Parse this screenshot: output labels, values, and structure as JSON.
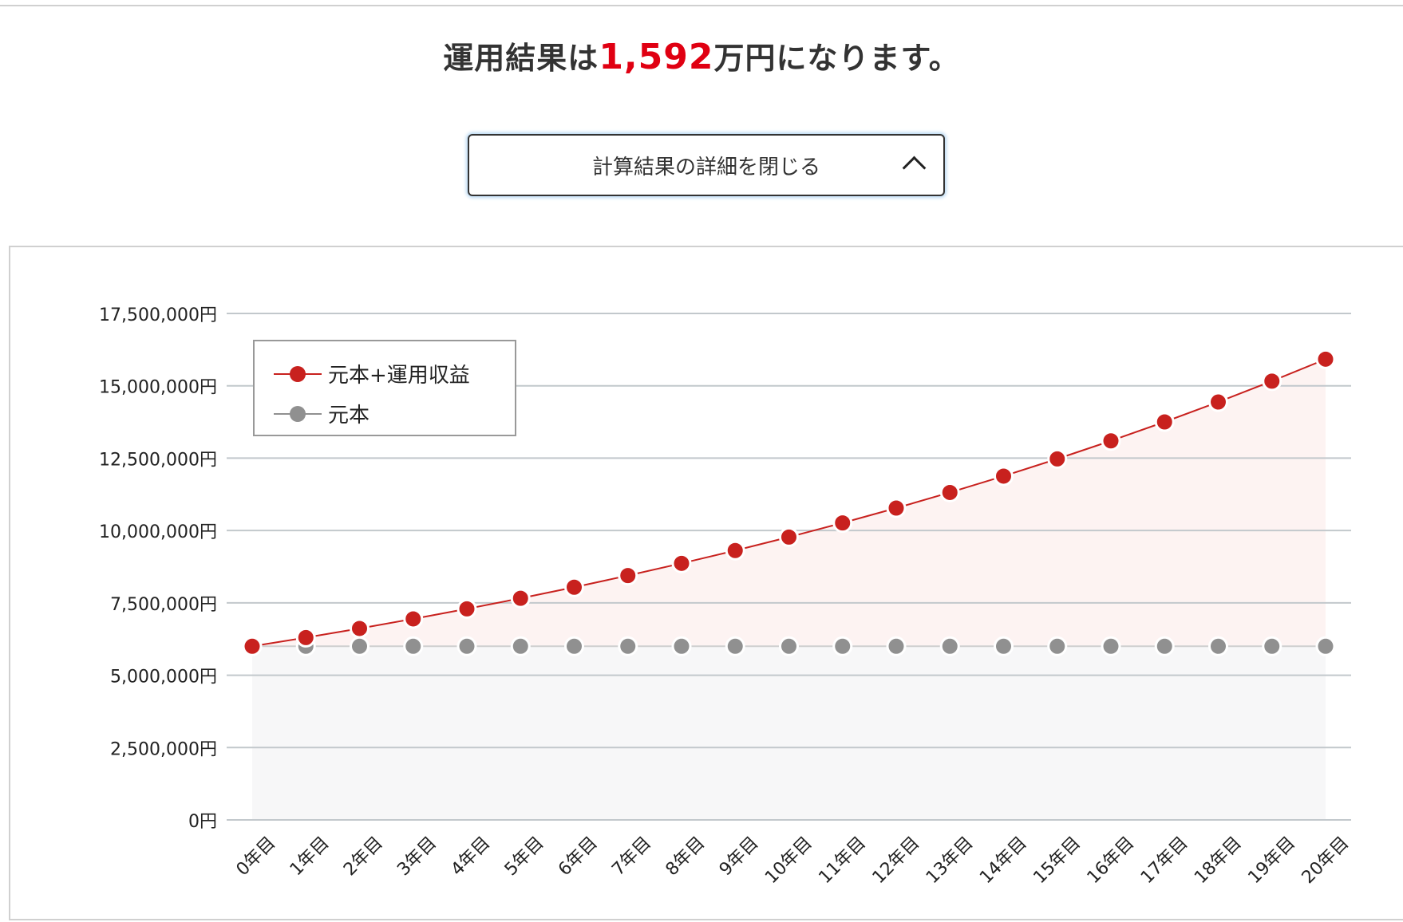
{
  "headline": {
    "prefix": "運用結果は",
    "amount": "1,592",
    "suffix": "万円になります。"
  },
  "toggle_button": {
    "label": "計算結果の詳細を閉じる",
    "icon": "chevron-up-icon"
  },
  "colors": {
    "accent": "#e00012",
    "series_total": "#c8211e",
    "series_principal": "#909090",
    "area_total": "#fdf3f2",
    "area_principal": "#f7f7f8",
    "grid": "#c2c8cc"
  },
  "chart_data": {
    "type": "line",
    "title": "",
    "xlabel": "",
    "ylabel": "",
    "ylim": [
      0,
      17500000
    ],
    "yticks": [
      0,
      2500000,
      5000000,
      7500000,
      10000000,
      12500000,
      15000000,
      17500000
    ],
    "ytick_labels": [
      "0円",
      "2,500,000円",
      "5,000,000円",
      "7,500,000円",
      "10,000,000円",
      "12,500,000円",
      "15,000,000円",
      "17,500,000円"
    ],
    "categories": [
      "0年目",
      "1年目",
      "2年目",
      "3年目",
      "4年目",
      "5年目",
      "6年目",
      "7年目",
      "8年目",
      "9年目",
      "10年目",
      "11年目",
      "12年目",
      "13年目",
      "14年目",
      "15年目",
      "16年目",
      "17年目",
      "18年目",
      "19年目",
      "20年目"
    ],
    "grid": true,
    "legend_position": "top-left",
    "series": [
      {
        "name": "元本+運用収益",
        "values": [
          6000000,
          6300000,
          6615000,
          6945750,
          7293038,
          7657689,
          8040574,
          8442603,
          8864733,
          9307969,
          9773368,
          10262036,
          10775138,
          11313895,
          11879590,
          12473570,
          13097248,
          13752110,
          14439716,
          15161702,
          15919787
        ]
      },
      {
        "name": "元本",
        "values": [
          6000000,
          6000000,
          6000000,
          6000000,
          6000000,
          6000000,
          6000000,
          6000000,
          6000000,
          6000000,
          6000000,
          6000000,
          6000000,
          6000000,
          6000000,
          6000000,
          6000000,
          6000000,
          6000000,
          6000000,
          6000000
        ]
      }
    ]
  }
}
